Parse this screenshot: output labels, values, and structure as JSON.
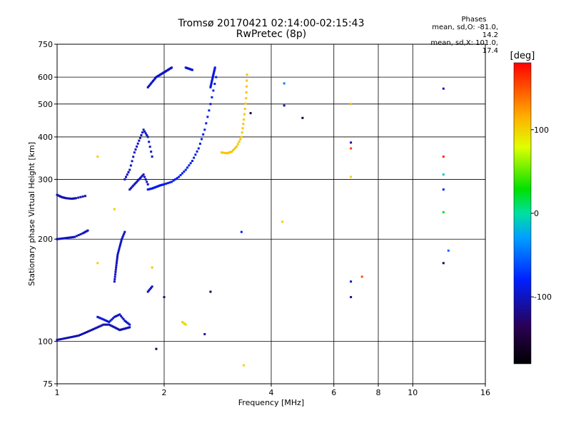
{
  "title": "Tromsø 20170421 02:14:00-02:15:43",
  "subtitle": "RwPretec (8p)",
  "phases_box": {
    "heading": "Phases",
    "line1": "mean, sd,O: -81.0, 14.2",
    "line2": "mean, sd,X: 101.0, 17.4"
  },
  "colorbar": {
    "label": "[deg]",
    "min": -180,
    "max": 180,
    "ticks": [
      100,
      0,
      -100
    ],
    "tick_labels": [
      "100",
      "0",
      "-100"
    ]
  },
  "chart_data": {
    "type": "scatter",
    "xlabel": "Frequency [MHz]",
    "ylabel": "Stationary phase Virtual Height [km]",
    "x_scale": "log",
    "y_scale": "log",
    "xlim": [
      1,
      16
    ],
    "ylim": [
      75,
      750
    ],
    "x_ticks": [
      1,
      2,
      4,
      6,
      8,
      10,
      16
    ],
    "x_tick_labels": [
      "1",
      "2",
      "4",
      "6",
      "8",
      "10",
      "16"
    ],
    "y_ticks": [
      75,
      100,
      200,
      300,
      400,
      500,
      600,
      750
    ],
    "y_tick_labels": [
      "75",
      "100",
      "200",
      "300",
      "400",
      "500",
      "600",
      "750"
    ],
    "grid": true,
    "traces": [
      {
        "f": [
          1.0,
          1.05,
          1.1,
          1.15,
          1.2,
          1.25,
          1.3,
          1.35,
          1.4,
          1.45,
          1.5,
          1.55,
          1.6
        ],
        "h": [
          101,
          102,
          103,
          104,
          106,
          108,
          110,
          112,
          112,
          110,
          108,
          109,
          110
        ],
        "phase": -105
      },
      {
        "f": [
          1.0,
          1.04,
          1.08,
          1.12,
          1.18,
          1.22
        ],
        "h": [
          200,
          201,
          202,
          203,
          208,
          212
        ],
        "phase": -100
      },
      {
        "f": [
          1.0,
          1.03,
          1.06,
          1.1,
          1.13,
          1.2
        ],
        "h": [
          270,
          266,
          264,
          263,
          264,
          268
        ],
        "phase": -105
      },
      {
        "f": [
          1.3,
          1.35,
          1.4,
          1.45,
          1.5,
          1.55,
          1.6
        ],
        "h": [
          118,
          116,
          114,
          118,
          120,
          115,
          112
        ],
        "phase": -95
      },
      {
        "f": [
          1.45,
          1.46,
          1.47,
          1.48,
          1.5,
          1.52,
          1.55
        ],
        "h": [
          150,
          160,
          170,
          180,
          190,
          200,
          210
        ],
        "phase": -100
      },
      {
        "f": [
          1.55,
          1.6,
          1.65,
          1.7,
          1.75,
          1.8,
          1.85
        ],
        "h": [
          300,
          320,
          360,
          390,
          420,
          400,
          350
        ],
        "phase": -98
      },
      {
        "f": [
          1.6,
          1.65,
          1.7,
          1.75,
          1.8
        ],
        "h": [
          280,
          290,
          300,
          310,
          290
        ],
        "phase": -100
      },
      {
        "f": [
          1.8,
          1.85,
          1.9,
          1.95,
          2.0,
          2.1,
          2.2,
          2.3,
          2.4,
          2.5,
          2.6,
          2.7,
          2.8
        ],
        "h": [
          280,
          282,
          285,
          288,
          290,
          295,
          305,
          320,
          340,
          370,
          420,
          500,
          600
        ],
        "phase": -85
      },
      {
        "f": [
          2.7,
          2.72,
          2.74,
          2.76,
          2.78
        ],
        "h": [
          560,
          580,
          600,
          620,
          640
        ],
        "phase": -90
      },
      {
        "f": [
          1.8,
          1.85,
          1.9,
          1.95,
          2.0,
          2.05,
          2.1
        ],
        "h": [
          560,
          580,
          600,
          610,
          620,
          630,
          640
        ],
        "phase": -100
      },
      {
        "f": [
          2.3,
          2.35,
          2.4
        ],
        "h": [
          640,
          635,
          630
        ],
        "phase": -95
      },
      {
        "f": [
          2.9,
          3.0,
          3.1,
          3.2,
          3.3,
          3.35,
          3.4,
          3.42
        ],
        "h": [
          360,
          358,
          362,
          375,
          400,
          450,
          520,
          610
        ],
        "phase": 105
      },
      {
        "f": [
          2.25,
          2.3
        ],
        "h": [
          114,
          112
        ],
        "phase": 95
      },
      {
        "f": [
          1.8,
          1.85
        ],
        "h": [
          140,
          145
        ],
        "phase": -100
      }
    ],
    "points": [
      {
        "f": 1.3,
        "h": 350,
        "phase": 100
      },
      {
        "f": 1.3,
        "h": 170,
        "phase": 100
      },
      {
        "f": 1.45,
        "h": 245,
        "phase": 100
      },
      {
        "f": 1.85,
        "h": 165,
        "phase": 105
      },
      {
        "f": 1.9,
        "h": 95,
        "phase": -150
      },
      {
        "f": 2.0,
        "h": 135,
        "phase": -120
      },
      {
        "f": 2.6,
        "h": 105,
        "phase": -110
      },
      {
        "f": 2.7,
        "h": 140,
        "phase": -150
      },
      {
        "f": 3.3,
        "h": 210,
        "phase": -80
      },
      {
        "f": 3.5,
        "h": 470,
        "phase": -150
      },
      {
        "f": 3.35,
        "h": 85,
        "phase": 100
      },
      {
        "f": 4.35,
        "h": 575,
        "phase": -40
      },
      {
        "f": 4.35,
        "h": 495,
        "phase": -100
      },
      {
        "f": 4.3,
        "h": 225,
        "phase": 100
      },
      {
        "f": 4.9,
        "h": 455,
        "phase": -150
      },
      {
        "f": 6.7,
        "h": 500,
        "phase": 110
      },
      {
        "f": 6.7,
        "h": 385,
        "phase": -110
      },
      {
        "f": 6.7,
        "h": 370,
        "phase": 155
      },
      {
        "f": 6.7,
        "h": 305,
        "phase": 100
      },
      {
        "f": 6.7,
        "h": 150,
        "phase": -95
      },
      {
        "f": 6.7,
        "h": 135,
        "phase": -110
      },
      {
        "f": 7.2,
        "h": 155,
        "phase": 150
      },
      {
        "f": 12.2,
        "h": 555,
        "phase": -100
      },
      {
        "f": 12.2,
        "h": 350,
        "phase": 165
      },
      {
        "f": 12.2,
        "h": 310,
        "phase": -10
      },
      {
        "f": 12.2,
        "h": 280,
        "phase": -80
      },
      {
        "f": 12.2,
        "h": 240,
        "phase": 20
      },
      {
        "f": 12.2,
        "h": 170,
        "phase": -150
      },
      {
        "f": 12.6,
        "h": 185,
        "phase": -50
      }
    ]
  }
}
